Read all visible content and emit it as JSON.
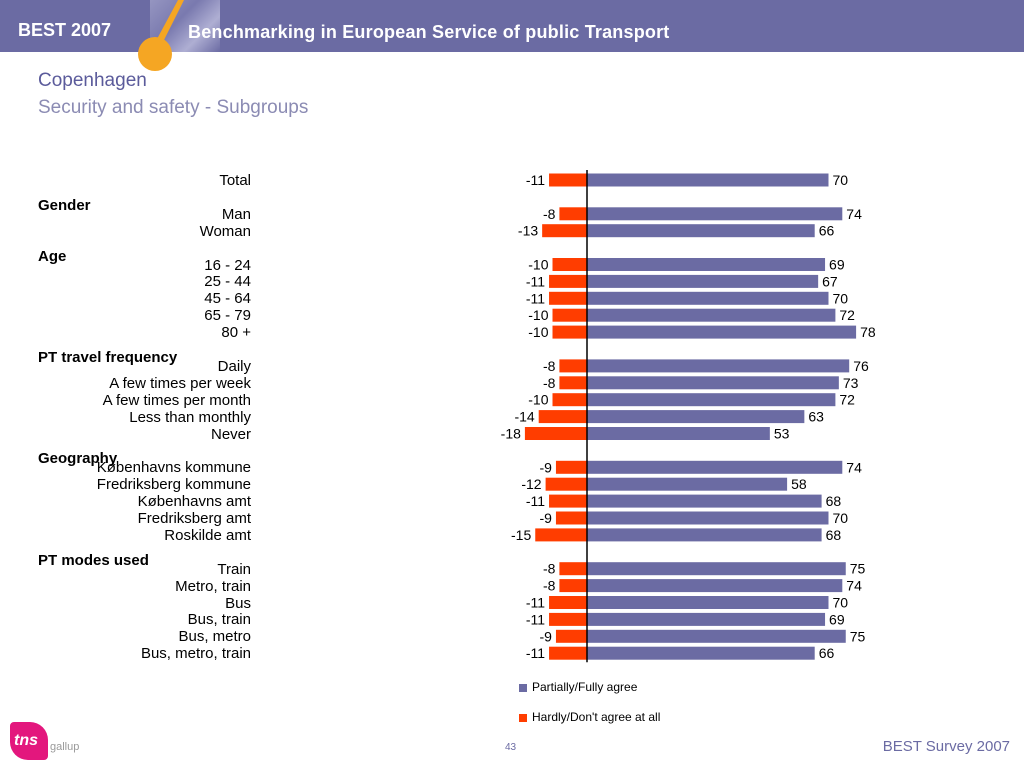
{
  "header": {
    "brand": "BEST 2007",
    "title": "Benchmarking in European Service of public Transport"
  },
  "slide": {
    "city": "Copenhagen",
    "subtitle": "Security and safety - Subgroups"
  },
  "footer": {
    "page_number": "43",
    "right_text": "BEST Survey 2007",
    "logo_text": "tns",
    "logo_subtext": "gallup"
  },
  "colors": {
    "header_bg": "#6b6ba3",
    "agree": "#6b6ba3",
    "disagree": "#ff3d00",
    "accent": "#f5a623"
  },
  "chart_data": {
    "type": "bar",
    "orientation": "horizontal-diverging",
    "groups": [
      {
        "name": "",
        "rows": [
          {
            "label": "Total",
            "agree": 70,
            "disagree": -11
          }
        ]
      },
      {
        "name": "Gender",
        "rows": [
          {
            "label": "Man",
            "agree": 74,
            "disagree": -8
          },
          {
            "label": "Woman",
            "agree": 66,
            "disagree": -13
          }
        ]
      },
      {
        "name": "Age",
        "rows": [
          {
            "label": "16 - 24",
            "agree": 69,
            "disagree": -10
          },
          {
            "label": "25 - 44",
            "agree": 67,
            "disagree": -11
          },
          {
            "label": "45 - 64",
            "agree": 70,
            "disagree": -11
          },
          {
            "label": "65 - 79",
            "agree": 72,
            "disagree": -10
          },
          {
            "label": "80 +",
            "agree": 78,
            "disagree": -10
          }
        ]
      },
      {
        "name": "PT travel frequency",
        "rows": [
          {
            "label": "Daily",
            "agree": 76,
            "disagree": -8
          },
          {
            "label": "A few times per week",
            "agree": 73,
            "disagree": -8
          },
          {
            "label": "A few times per month",
            "agree": 72,
            "disagree": -10
          },
          {
            "label": "Less than monthly",
            "agree": 63,
            "disagree": -14
          },
          {
            "label": "Never",
            "agree": 53,
            "disagree": -18
          }
        ]
      },
      {
        "name": "Geography",
        "rows": [
          {
            "label": "Københavns kommune",
            "agree": 74,
            "disagree": -9
          },
          {
            "label": "Fredriksberg kommune",
            "agree": 58,
            "disagree": -12
          },
          {
            "label": "Københavns amt",
            "agree": 68,
            "disagree": -11
          },
          {
            "label": "Fredriksberg amt",
            "agree": 70,
            "disagree": -9
          },
          {
            "label": "Roskilde amt",
            "agree": 68,
            "disagree": -15
          }
        ]
      },
      {
        "name": "PT modes used",
        "rows": [
          {
            "label": "Train",
            "agree": 75,
            "disagree": -8
          },
          {
            "label": "Metro, train",
            "agree": 74,
            "disagree": -8
          },
          {
            "label": "Bus",
            "agree": 70,
            "disagree": -11
          },
          {
            "label": "Bus, train",
            "agree": 69,
            "disagree": -11
          },
          {
            "label": "Bus, metro",
            "agree": 75,
            "disagree": -9
          },
          {
            "label": "Bus, metro, train",
            "agree": 66,
            "disagree": -11
          }
        ]
      }
    ],
    "series": [
      {
        "name": "Partially/Fully agree",
        "key": "agree",
        "color": "#6b6ba3"
      },
      {
        "name": "Hardly/Don't agree at all",
        "key": "disagree",
        "color": "#ff3d00"
      }
    ],
    "legend_position": "bottom",
    "grid": false
  }
}
